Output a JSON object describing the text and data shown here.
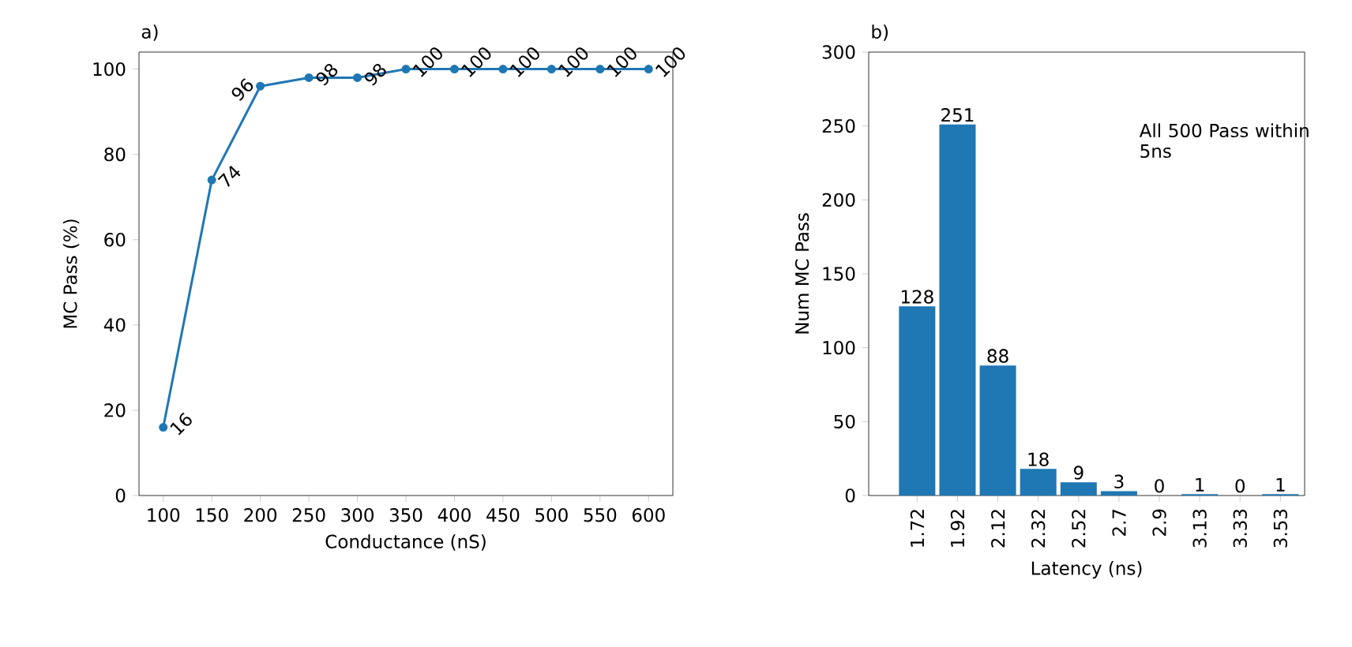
{
  "chart_data": [
    {
      "type": "line",
      "title": "a)",
      "xlabel": "Conductance (nS)",
      "ylabel": "MC Pass (%)",
      "x": [
        100,
        150,
        200,
        250,
        300,
        350,
        400,
        450,
        500,
        550,
        600
      ],
      "values": [
        16,
        74,
        96,
        98,
        98,
        100,
        100,
        100,
        100,
        100,
        100
      ],
      "color": "#1f77b4",
      "marker": "circle",
      "data_labels": true,
      "xlim": [
        75,
        625
      ],
      "ylim": [
        0,
        104
      ],
      "xticks": [
        100,
        150,
        200,
        250,
        300,
        350,
        400,
        450,
        500,
        550,
        600
      ],
      "yticks": [
        0,
        20,
        40,
        60,
        80,
        100
      ]
    },
    {
      "type": "bar",
      "title": "b)",
      "xlabel": "Latency (ns)",
      "ylabel": "Num MC Pass",
      "categories": [
        "1.72",
        "1.92",
        "2.12",
        "2.32",
        "2.52",
        "2.7",
        "2.9",
        "3.13",
        "3.33",
        "3.53"
      ],
      "values": [
        128,
        251,
        88,
        18,
        9,
        3,
        0,
        1,
        0,
        1
      ],
      "color": "#1f77b4",
      "data_labels": true,
      "ylim": [
        0,
        300
      ],
      "yticks": [
        0,
        50,
        100,
        150,
        200,
        250,
        300
      ],
      "annotations": [
        "All 500 Pass within 5ns"
      ]
    }
  ]
}
